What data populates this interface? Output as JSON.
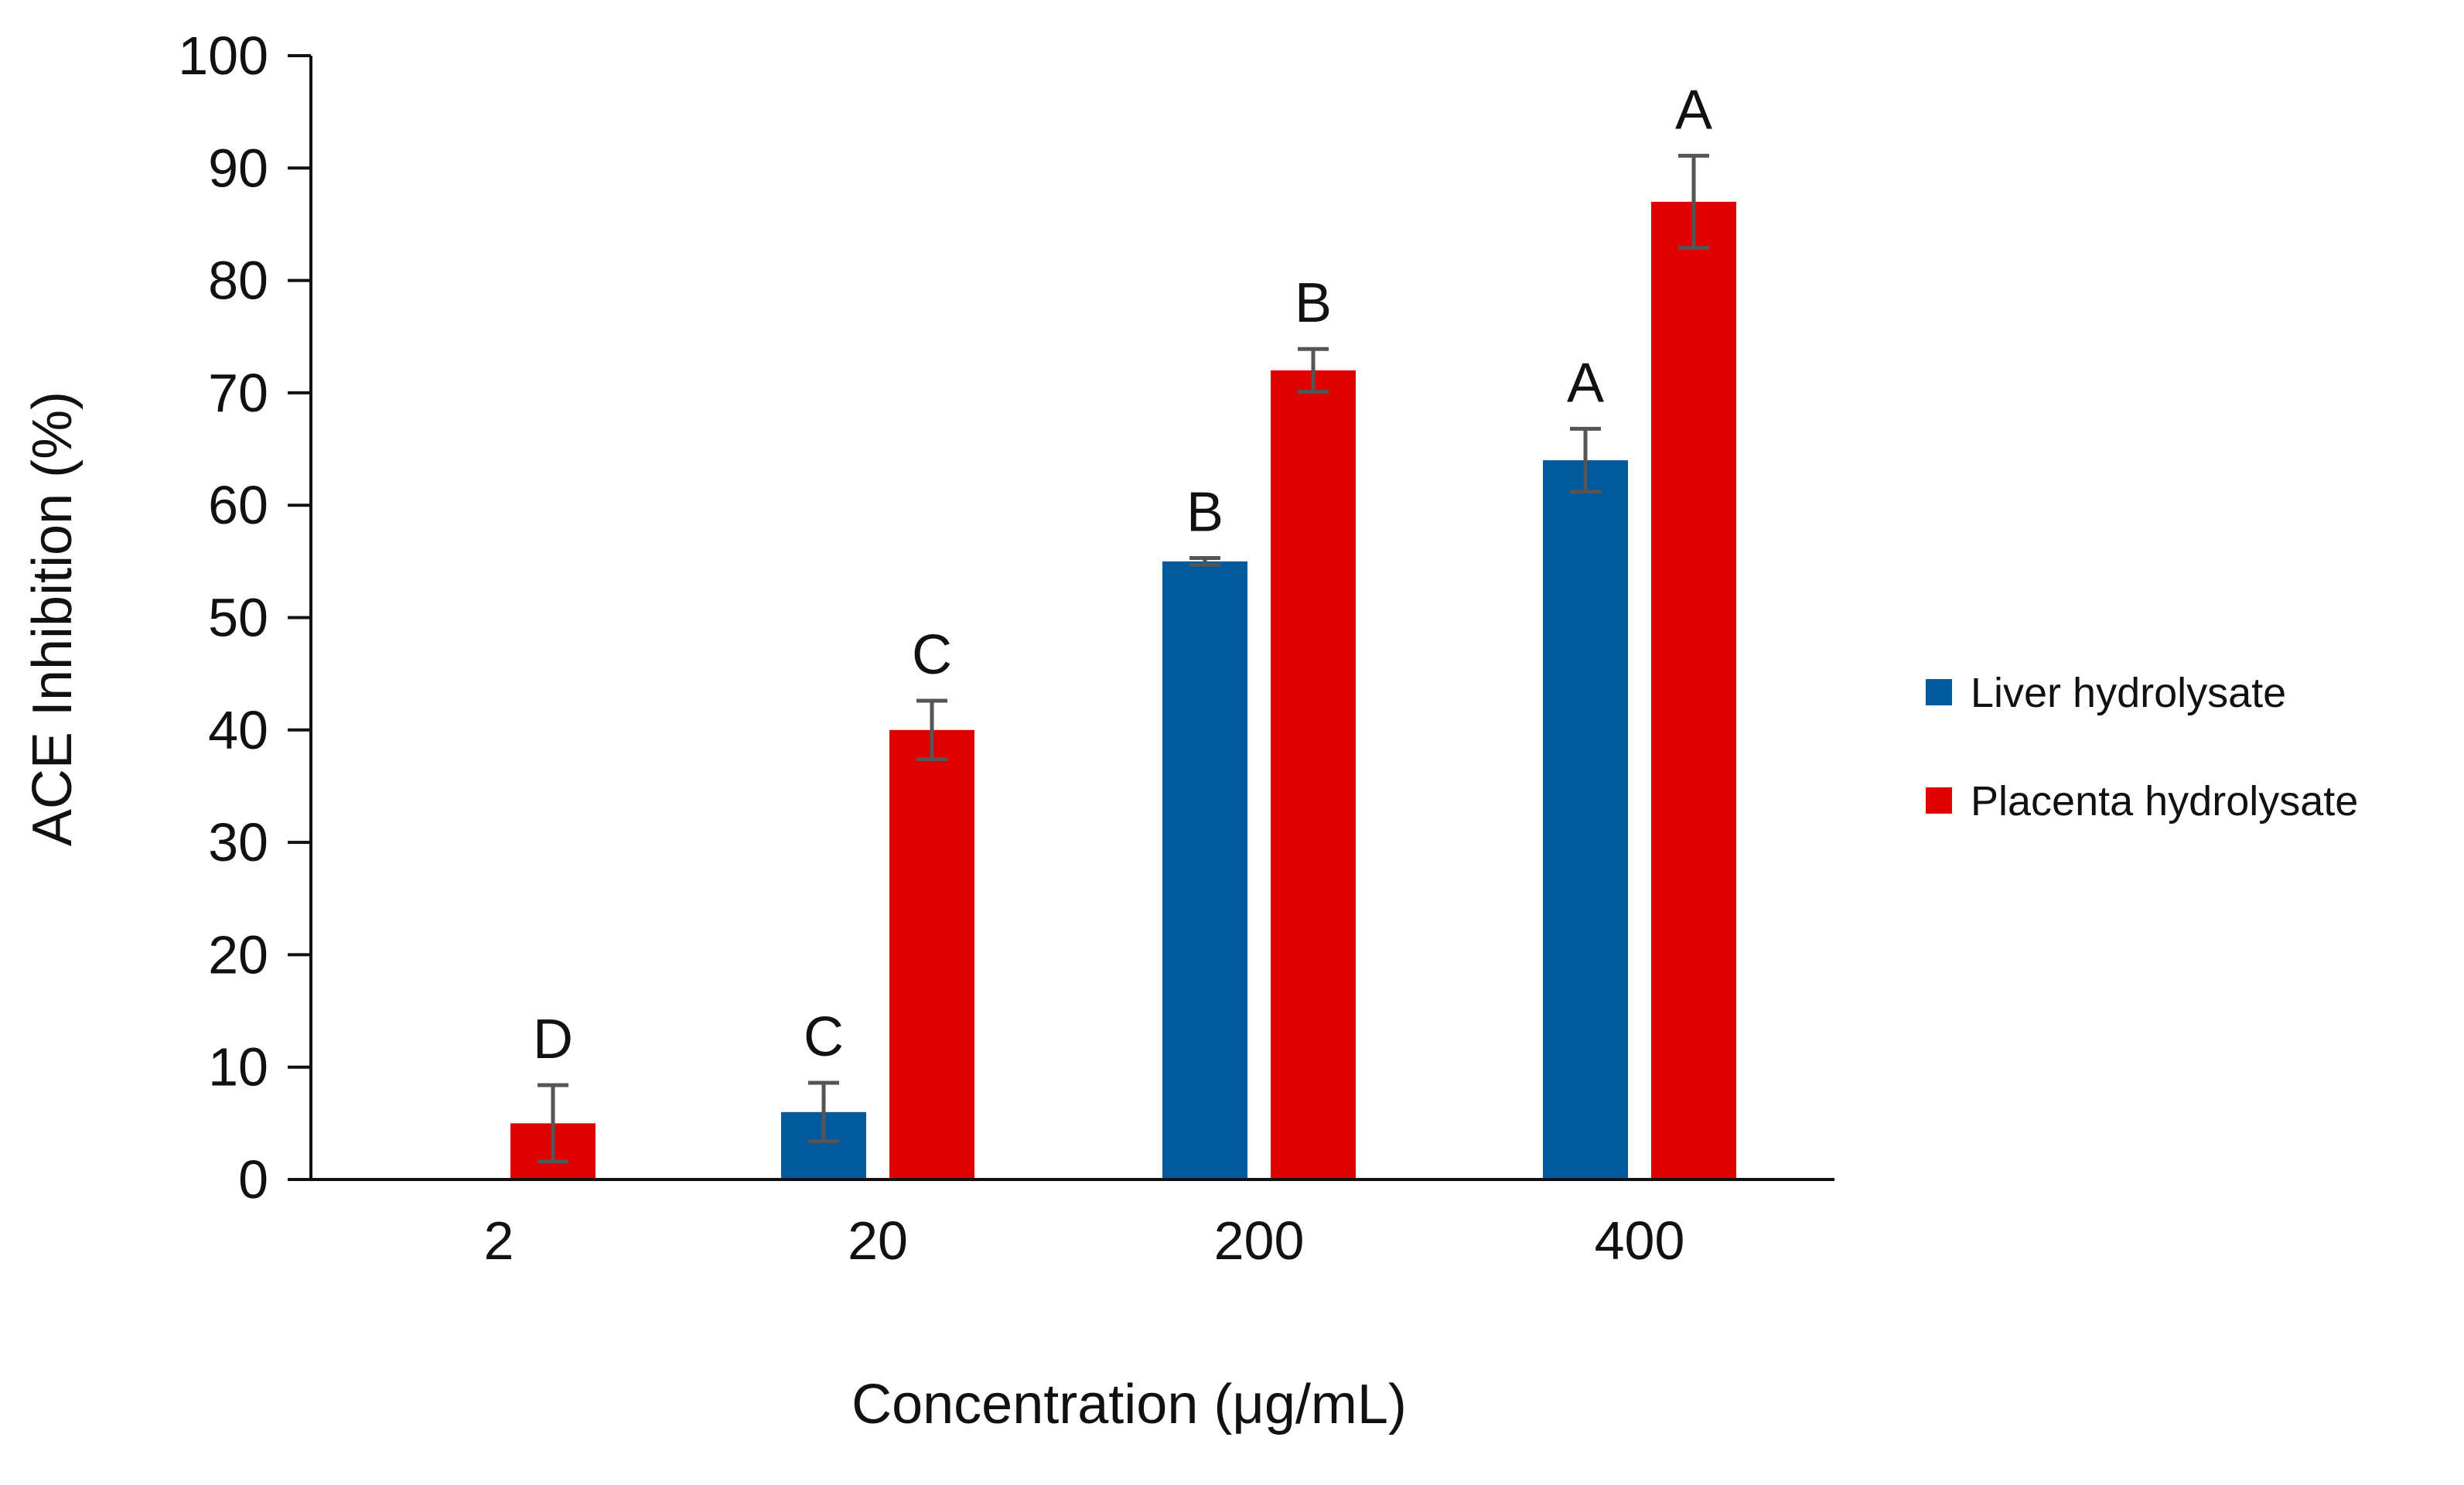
{
  "chart_data": {
    "type": "bar",
    "title": "",
    "xlabel": "Concentration (μg/mL)",
    "ylabel": "ACE Inhibition (%)",
    "ylim": [
      0,
      100
    ],
    "yticks": [
      0,
      10,
      20,
      30,
      40,
      50,
      60,
      70,
      80,
      90,
      100
    ],
    "grid": false,
    "legend_position": "right",
    "categories": [
      "2",
      "20",
      "200",
      "400"
    ],
    "series": [
      {
        "name": "Liver hydrolysate",
        "color": "#005A9C",
        "values": [
          0,
          6,
          55,
          64
        ],
        "errors": [
          0,
          2.6,
          0.3,
          2.8
        ],
        "letters": [
          "",
          "C",
          "B",
          "A"
        ]
      },
      {
        "name": "Placenta hydrolysate",
        "color": "#E00000",
        "values": [
          5,
          40,
          72,
          87
        ],
        "errors": [
          3.4,
          2.6,
          1.9,
          4.1
        ],
        "letters": [
          "D",
          "C",
          "B",
          "A"
        ]
      }
    ],
    "errorbar_color": "#555555",
    "axis_color": "#111111"
  }
}
